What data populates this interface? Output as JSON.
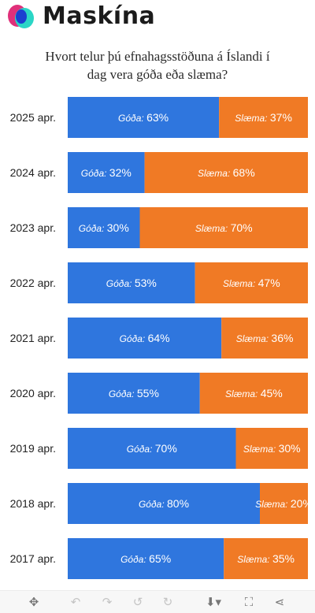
{
  "brand": {
    "name": "Maskína",
    "logo_colors": {
      "pink": "#e0307a",
      "cyan": "#2bd6c6",
      "blue": "#1b3fd0"
    }
  },
  "title_lines": [
    "Hvort telur þú efnahagsstöðuna á Íslandi í",
    "dag vera góða eða slæma?"
  ],
  "colors": {
    "goda": "#2f76de",
    "slaema": "#f07a25",
    "label_text": "#222222",
    "bar_text": "#ffffff"
  },
  "chart_data": {
    "type": "bar",
    "orientation": "horizontal",
    "stacked": true,
    "normalized_to": 100,
    "categories": [
      "2025 apr.",
      "2024 apr.",
      "2023 apr.",
      "2022 apr.",
      "2021 apr.",
      "2020 apr.",
      "2019 apr.",
      "2018 apr.",
      "2017 apr."
    ],
    "series": [
      {
        "name": "Góða",
        "color": "#2f76de",
        "values": [
          63,
          32,
          30,
          53,
          64,
          55,
          70,
          80,
          65
        ]
      },
      {
        "name": "Slæma",
        "color": "#f07a25",
        "values": [
          37,
          68,
          70,
          47,
          36,
          45,
          30,
          20,
          35
        ]
      }
    ],
    "data_label_format": "{series}: {value}%",
    "title": "Hvort telur þú efnahagsstöðuna á Íslandi í dag vera góða eða slæma?",
    "xlabel": "",
    "ylabel": "",
    "grid": false,
    "legend": "none"
  },
  "toolbar": {
    "icons": [
      "move-icon",
      "undo-icon",
      "redo-icon",
      "reset-icon",
      "redo-alt-icon",
      "download-icon",
      "fullscreen-icon",
      "share-icon"
    ]
  }
}
